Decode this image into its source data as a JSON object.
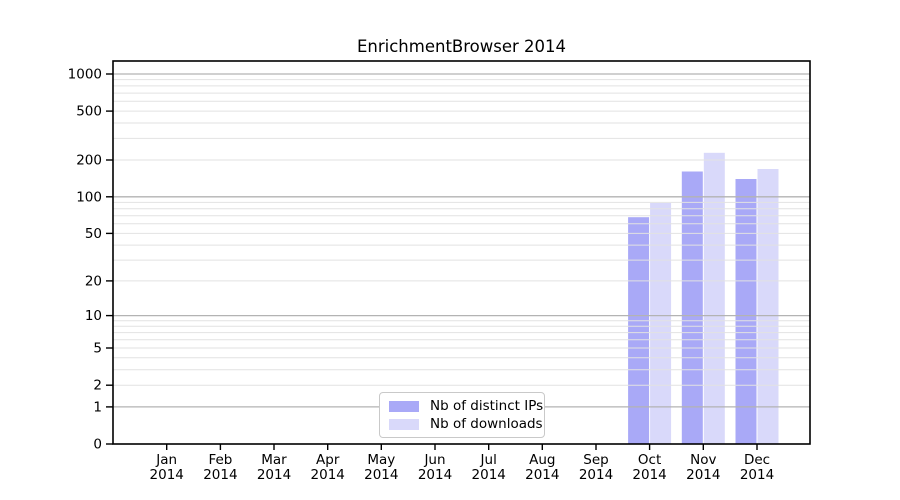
{
  "title": "EnrichmentBrowser 2014",
  "chart_data": {
    "type": "bar",
    "title": "EnrichmentBrowser 2014",
    "scale": "log10(1+x)",
    "categories": [
      "Jan",
      "Feb",
      "Mar",
      "Apr",
      "May",
      "Jun",
      "Jul",
      "Aug",
      "Sep",
      "Oct",
      "Nov",
      "Dec"
    ],
    "category_year": "2014",
    "series": [
      {
        "name": "Nb of distinct IPs",
        "color": "#a9a9f7",
        "values": [
          0,
          0,
          0,
          0,
          0,
          0,
          0,
          0,
          0,
          68,
          161,
          140
        ]
      },
      {
        "name": "Nb of downloads",
        "color": "#d9d9fa",
        "values": [
          0,
          0,
          0,
          0,
          0,
          0,
          0,
          0,
          0,
          89,
          229,
          169
        ]
      }
    ],
    "y_ticks": [
      0,
      1,
      2,
      5,
      10,
      20,
      50,
      100,
      200,
      500,
      1000
    ],
    "ylim": [
      0,
      1000
    ],
    "xlabel": "",
    "ylabel": "",
    "grid": "horizontal, log major + minor",
    "legend_position": "bottom-center",
    "colors": {
      "major_grid": "#b3b3b3",
      "minor_grid": "#e2e2e2",
      "axis": "#000000",
      "background": "#ffffff"
    }
  }
}
